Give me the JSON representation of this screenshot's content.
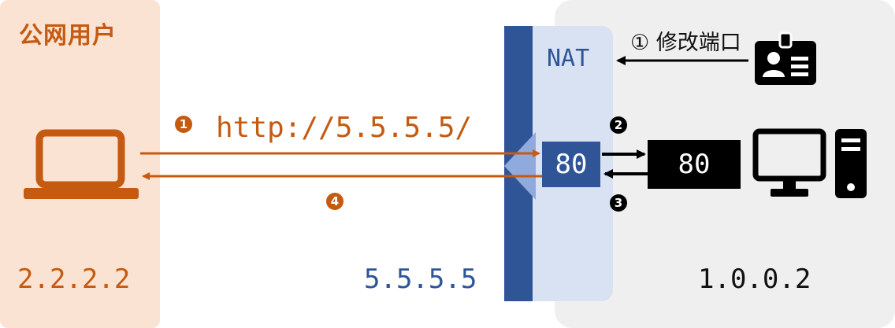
{
  "zones": {
    "public_title": "公网用户",
    "public_ip": "2.2.2.2",
    "nat_label": "NAT",
    "nat_ip": "5.5.5.5",
    "private_ip": "1.0.0.2"
  },
  "flow": {
    "request_url": "http://5.5.5.5/",
    "admin_note": "① 修改端口",
    "nat_port": "80",
    "server_port": "80",
    "step1": "1",
    "step2": "2",
    "step3": "3",
    "step4": "4"
  },
  "icons": {
    "client": "laptop-icon",
    "admin": "id-badge-icon",
    "server": "desktop-computer-icon"
  },
  "colors": {
    "public": "#c55a11",
    "public_bg": "#fbe3d4",
    "nat": "#2f5597",
    "nat_bg": "#d8e2f2",
    "private_bg": "#efefef"
  }
}
